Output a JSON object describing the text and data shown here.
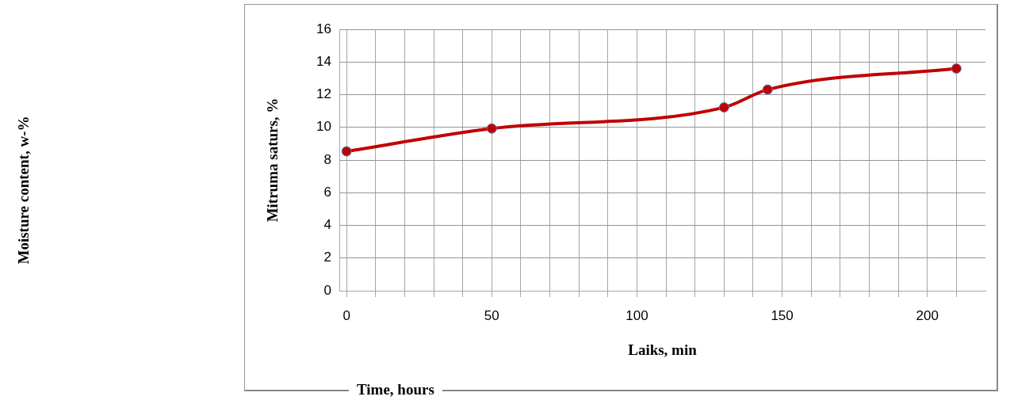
{
  "chart_data": {
    "type": "line",
    "xlabel": "Laiks, min",
    "ylabel": "Mitruma saturs, %",
    "annotations": [
      "Moisture content, w-%",
      "Time, hours"
    ],
    "x": [
      0,
      50,
      130,
      145,
      210
    ],
    "series": [
      {
        "color": "#c00000",
        "values": [
          8.53,
          9.93,
          11.22,
          12.31,
          13.6
        ]
      }
    ],
    "xlim": [
      -2.5,
      220
    ],
    "xticks": [
      0,
      {
        "value": 10,
        "label": null
      },
      {
        "value": 20,
        "label": null
      },
      {
        "value": 30,
        "label": null
      },
      {
        "value": 40,
        "label": null
      },
      50,
      {
        "value": 60,
        "label": null
      },
      {
        "value": 70,
        "label": null
      },
      {
        "value": 80,
        "label": null
      },
      {
        "value": 90,
        "label": null
      },
      100,
      {
        "value": 110,
        "label": null
      },
      {
        "value": 120,
        "label": null
      },
      {
        "value": 130,
        "label": null
      },
      {
        "value": 140,
        "label": null
      },
      150,
      {
        "value": 160,
        "label": null
      },
      {
        "value": 170,
        "label": null
      },
      {
        "value": 180,
        "label": null
      },
      {
        "value": 190,
        "label": null
      },
      200,
      {
        "value": 210,
        "label": null
      }
    ],
    "ylim": [
      0,
      16
    ],
    "yticks": [
      0,
      2,
      4,
      6,
      8,
      10,
      12,
      14,
      16
    ],
    "grid": true,
    "legend": false,
    "marker": "circle",
    "line_style": "solid"
  }
}
